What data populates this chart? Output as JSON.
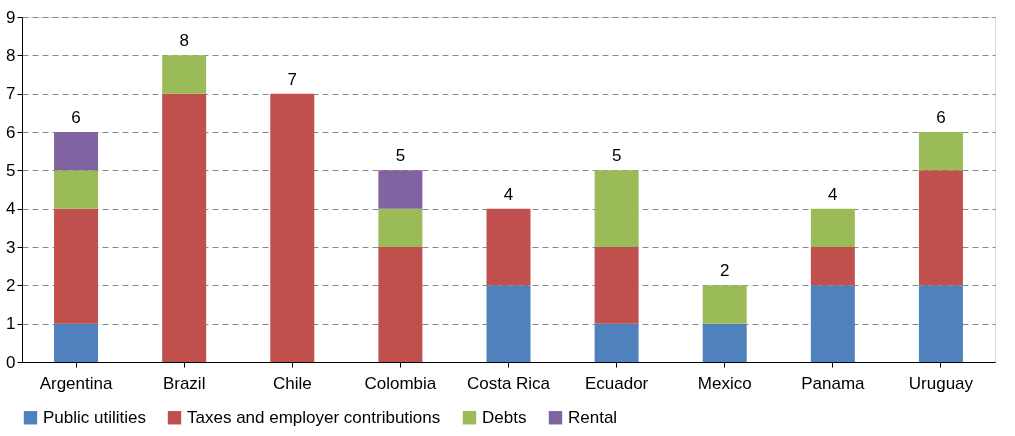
{
  "chart_data": {
    "type": "bar",
    "stacked": true,
    "categories": [
      "Argentina",
      "Brazil",
      "Chile",
      "Colombia",
      "Costa Rica",
      "Ecuador",
      "Mexico",
      "Panama",
      "Uruguay"
    ],
    "series": [
      {
        "name": "Public utilities",
        "color": "#4f81bd",
        "values": [
          1,
          null,
          null,
          null,
          2,
          1,
          1,
          2,
          2
        ]
      },
      {
        "name": "Taxes and employer contributions",
        "color": "#c0504d",
        "values": [
          3,
          7,
          7,
          3,
          2,
          2,
          null,
          1,
          3
        ]
      },
      {
        "name": "Debts",
        "color": "#9bbb59",
        "values": [
          1,
          1,
          null,
          1,
          null,
          2,
          1,
          1,
          1
        ]
      },
      {
        "name": "Rental",
        "color": "#8064a2",
        "values": [
          1,
          null,
          null,
          1,
          null,
          null,
          null,
          null,
          null
        ]
      }
    ],
    "totals": [
      "6",
      "8",
      "7",
      "5",
      "4",
      "5",
      "2",
      "4",
      "6"
    ],
    "ylim": [
      0,
      9
    ],
    "yticks": [
      0,
      1,
      2,
      3,
      4,
      5,
      6,
      7,
      8,
      9
    ],
    "grid": "y",
    "legend": "bottom"
  }
}
